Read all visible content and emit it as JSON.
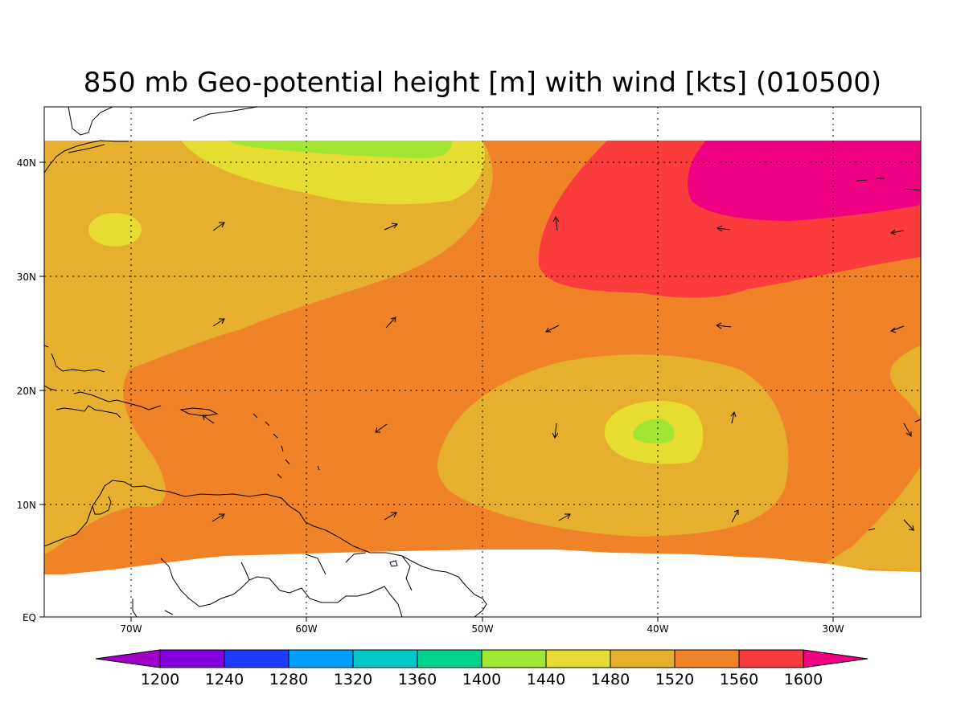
{
  "title": "850 mb Geo-potential height [m] with wind [kts] (010500)",
  "axes": {
    "lon_labels": [
      "70W",
      "60W",
      "50W",
      "40W",
      "30W"
    ],
    "lat_labels": [
      "EQ",
      "10N",
      "20N",
      "30N",
      "40N"
    ]
  },
  "colorbar": {
    "labels": [
      "1200",
      "1240",
      "1280",
      "1320",
      "1360",
      "1400",
      "1440",
      "1480",
      "1520",
      "1560",
      "1600"
    ],
    "colors": [
      "#a000c8",
      "#8200dc",
      "#1e3cff",
      "#00a0ff",
      "#00c8c8",
      "#00d28c",
      "#a0e632",
      "#e6dc32",
      "#e6af2d",
      "#f08228",
      "#fa3c3c",
      "#f00082"
    ]
  },
  "field_colors": {
    "c1440": "#a0e632",
    "c1480": "#e6dc32",
    "c1520": "#e6af2d",
    "c1560": "#f08228",
    "c1600": "#fa3c3c",
    "c1640": "#f00082"
  }
}
